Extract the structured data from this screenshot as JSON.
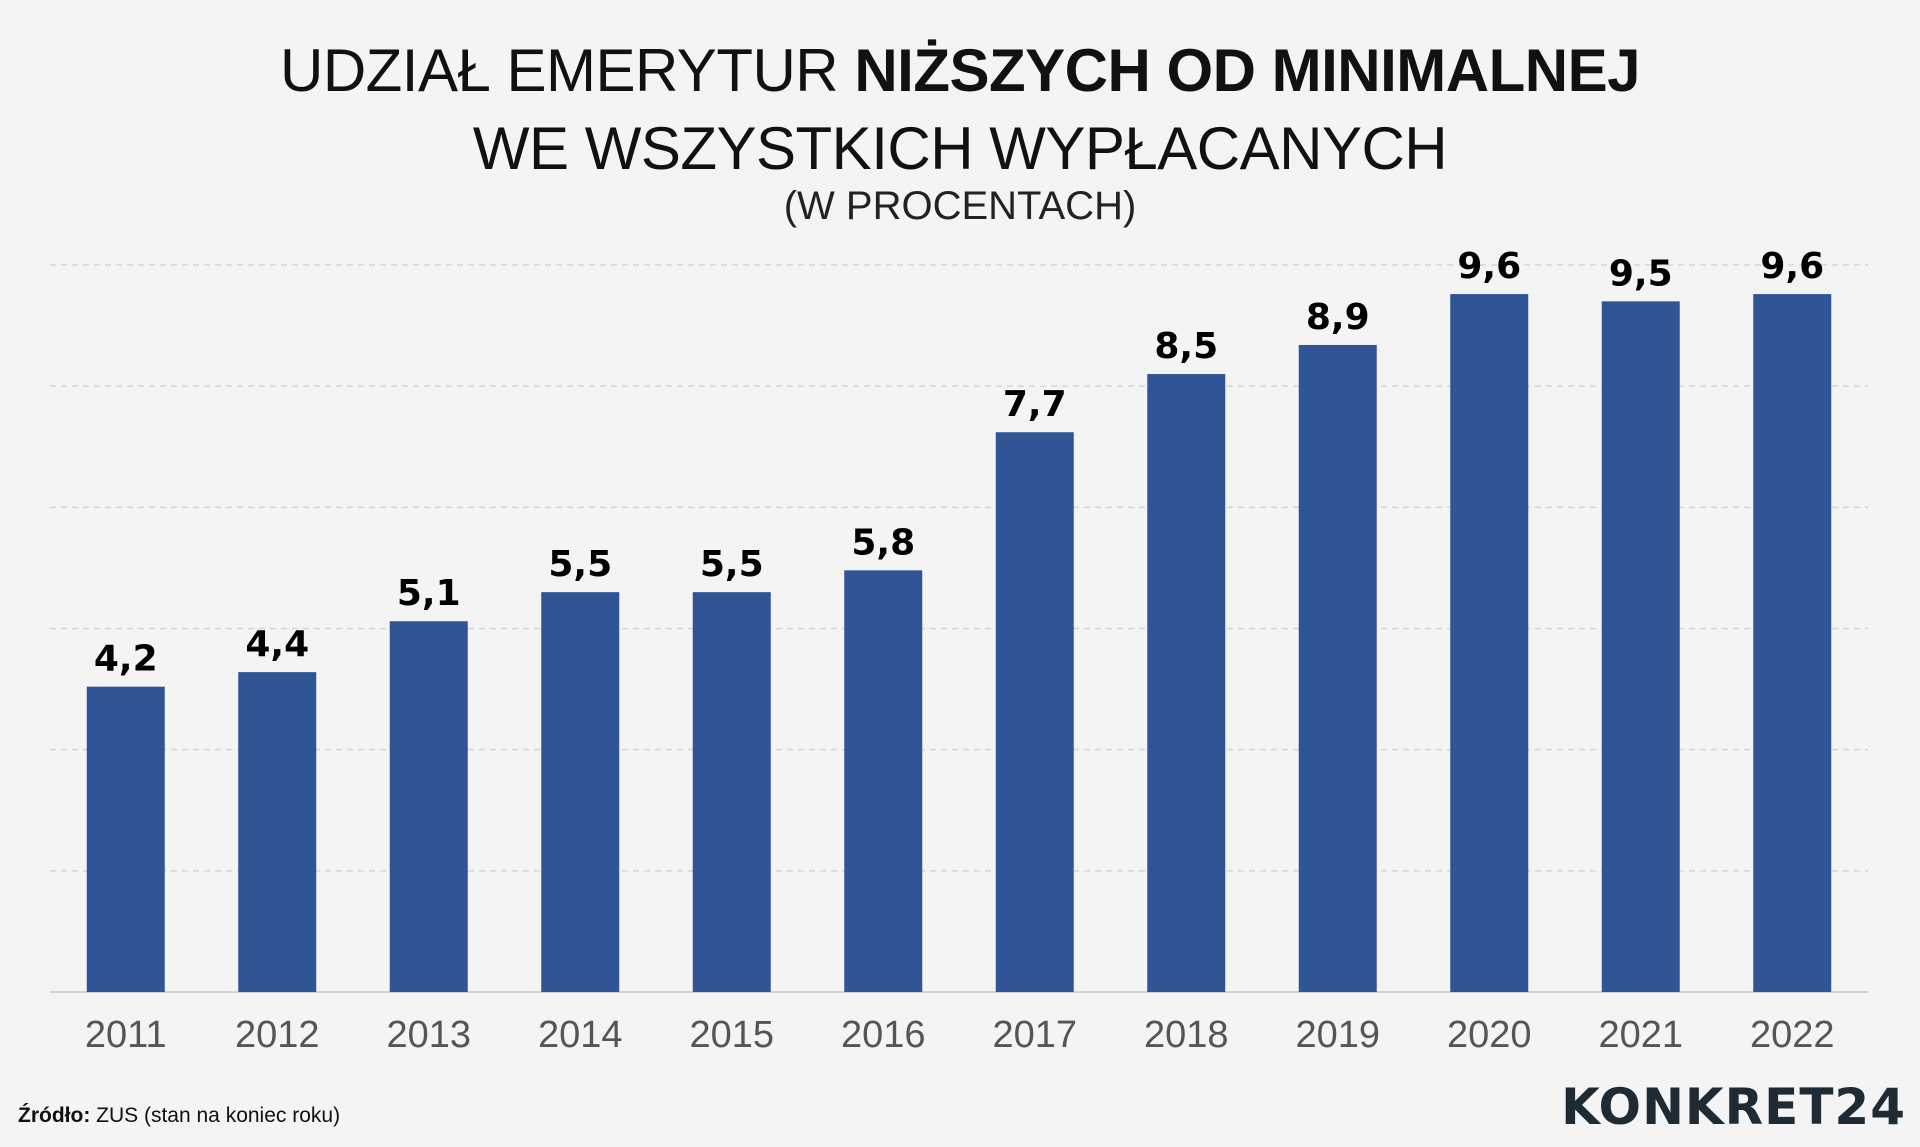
{
  "title": {
    "part1": "UDZIAŁ EMERYTUR ",
    "part2_bold": "NIŻSZYCH OD MINIMALNEJ",
    "line2": "WE WSZYSTKICH WYPŁACANYCH",
    "subtitle": "(W PROCENTACH)"
  },
  "footer": {
    "source_label": "Źródło:",
    "source_text": " ZUS (stan na koniec roku)",
    "logo_text": "KONKRET24"
  },
  "colors": {
    "bar": "#2f5597",
    "grid": "#d5d5d5",
    "axis_label": "#555555",
    "value_label": "#000000"
  },
  "chart_data": {
    "type": "bar",
    "title": "UDZIAŁ EMERYTUR NIŻSZYCH OD MINIMALNEJ WE WSZYSTKICH WYPŁACANYCH",
    "subtitle": "(W PROCENTACH)",
    "categories": [
      "2011",
      "2012",
      "2013",
      "2014",
      "2015",
      "2016",
      "2017",
      "2018",
      "2019",
      "2020",
      "2021",
      "2022"
    ],
    "values": [
      4.2,
      4.4,
      5.1,
      5.5,
      5.5,
      5.8,
      7.7,
      8.5,
      8.9,
      9.6,
      9.5,
      9.6
    ],
    "value_labels": [
      "4,2",
      "4,4",
      "5,1",
      "5,5",
      "5,5",
      "5,8",
      "7,7",
      "8,5",
      "8,9",
      "9,6",
      "9,5",
      "9,6"
    ],
    "xlabel": "",
    "ylabel": "",
    "ylim": [
      0,
      10
    ],
    "grid": true,
    "y_tick_labels_visible": false
  }
}
